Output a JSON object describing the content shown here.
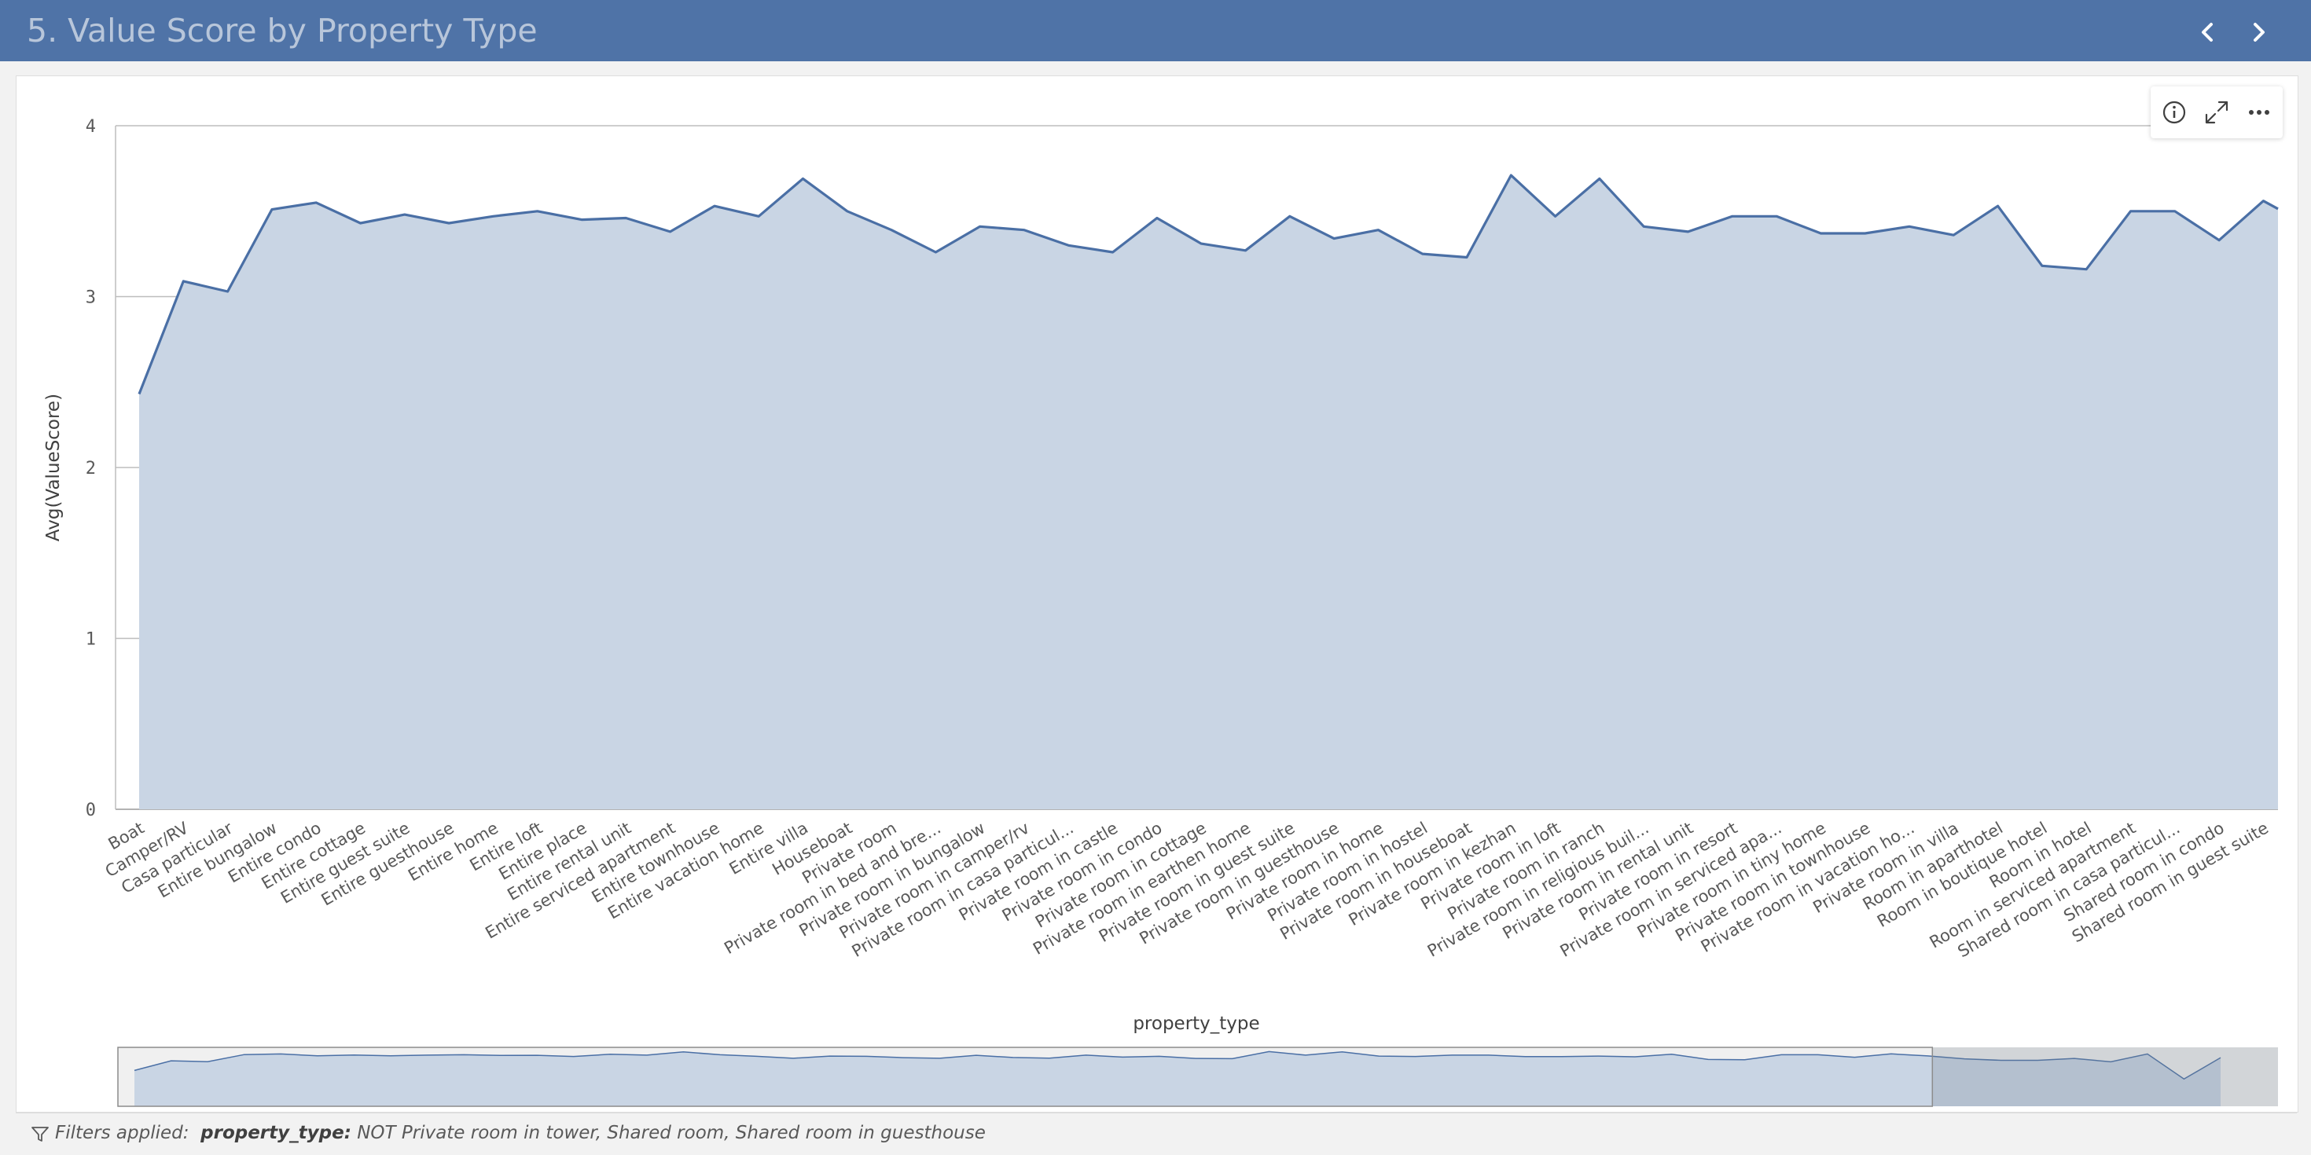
{
  "header": {
    "title": "5. Value Score by Property Type",
    "prev_icon": "chevron-left-icon",
    "next_icon": "chevron-right-icon"
  },
  "toolbar": {
    "icons": [
      "info-icon",
      "expand-icon",
      "more-icon"
    ]
  },
  "chart_data": {
    "type": "area",
    "title": "",
    "xlabel": "property_type",
    "ylabel": "Avg(ValueScore)",
    "ylim": [
      0,
      4
    ],
    "yticks": [
      "0",
      "1",
      "2",
      "3",
      "4"
    ],
    "grid": true,
    "categories": [
      "Boat",
      "Camper/RV",
      "Casa particular",
      "Entire bungalow",
      "Entire condo",
      "Entire cottage",
      "Entire guest suite",
      "Entire guesthouse",
      "Entire home",
      "Entire loft",
      "Entire place",
      "Entire rental unit",
      "Entire serviced apartment",
      "Entire townhouse",
      "Entire vacation home",
      "Entire villa",
      "Houseboat",
      "Private room",
      "Private room in bed and bre...",
      "Private room in bungalow",
      "Private room in camper/rv",
      "Private room in casa particul...",
      "Private room in castle",
      "Private room in condo",
      "Private room in cottage",
      "Private room in earthen home",
      "Private room in guest suite",
      "Private room in guesthouse",
      "Private room in home",
      "Private room in hostel",
      "Private room in houseboat",
      "Private room in kezhan",
      "Private room in loft",
      "Private room in ranch",
      "Private room in religious buil...",
      "Private room in rental unit",
      "Private room in resort",
      "Private room in serviced apa...",
      "Private room in tiny home",
      "Private room in townhouse",
      "Private room in vacation ho...",
      "Private room in villa",
      "Room in aparthotel",
      "Room in boutique hotel",
      "Room in hotel",
      "Room in serviced apartment",
      "Shared room in casa particul...",
      "Shared room in condo",
      "Shared room in guest suite"
    ],
    "values": [
      2.43,
      3.09,
      3.03,
      3.51,
      3.55,
      3.43,
      3.48,
      3.43,
      3.47,
      3.5,
      3.45,
      3.46,
      3.38,
      3.53,
      3.47,
      3.69,
      3.5,
      3.39,
      3.26,
      3.41,
      3.39,
      3.3,
      3.26,
      3.46,
      3.31,
      3.27,
      3.47,
      3.34,
      3.39,
      3.25,
      3.23,
      3.71,
      3.47,
      3.69,
      3.41,
      3.38,
      3.47,
      3.47,
      3.37,
      3.37,
      3.41,
      3.36,
      3.53,
      3.18,
      3.16,
      3.5,
      3.5,
      3.33,
      3.56
    ],
    "clipped_next_value": 3.42,
    "minimap": {
      "values": [
        2.43,
        3.09,
        3.03,
        3.51,
        3.55,
        3.43,
        3.48,
        3.43,
        3.47,
        3.5,
        3.45,
        3.46,
        3.38,
        3.53,
        3.47,
        3.69,
        3.5,
        3.39,
        3.26,
        3.41,
        3.39,
        3.3,
        3.26,
        3.46,
        3.31,
        3.27,
        3.47,
        3.34,
        3.39,
        3.25,
        3.23,
        3.71,
        3.47,
        3.69,
        3.41,
        3.38,
        3.47,
        3.47,
        3.37,
        3.37,
        3.41,
        3.36,
        3.53,
        3.18,
        3.16,
        3.5,
        3.5,
        3.33,
        3.56,
        3.42,
        3.22,
        3.12,
        3.12,
        3.25,
        3.02,
        3.55,
        1.85,
        3.3
      ],
      "visible_fraction": 0.84
    }
  },
  "footer": {
    "label": "Filters applied:",
    "field": "property_type:",
    "value": "NOT Private room in tower, Shared room, Shared room in guesthouse"
  },
  "colors": {
    "header": "#4f73a7",
    "title": "#b8c6da",
    "series_line": "#4a6fa5",
    "series_fill": "#c9d5e4"
  }
}
